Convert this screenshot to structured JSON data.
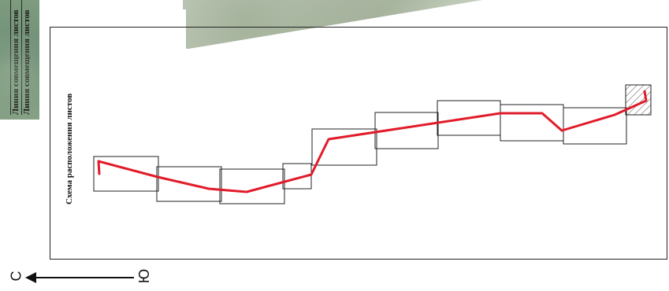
{
  "strip_labels": [
    "Линия совмещения листов",
    "Линия совмещения листов"
  ],
  "scheme_title": "Схема расположения листов",
  "compass": {
    "north": "С",
    "south": "Ю"
  },
  "colors": {
    "route": "#e11b2a",
    "frame": "#222222",
    "hatch": "#444444"
  }
}
